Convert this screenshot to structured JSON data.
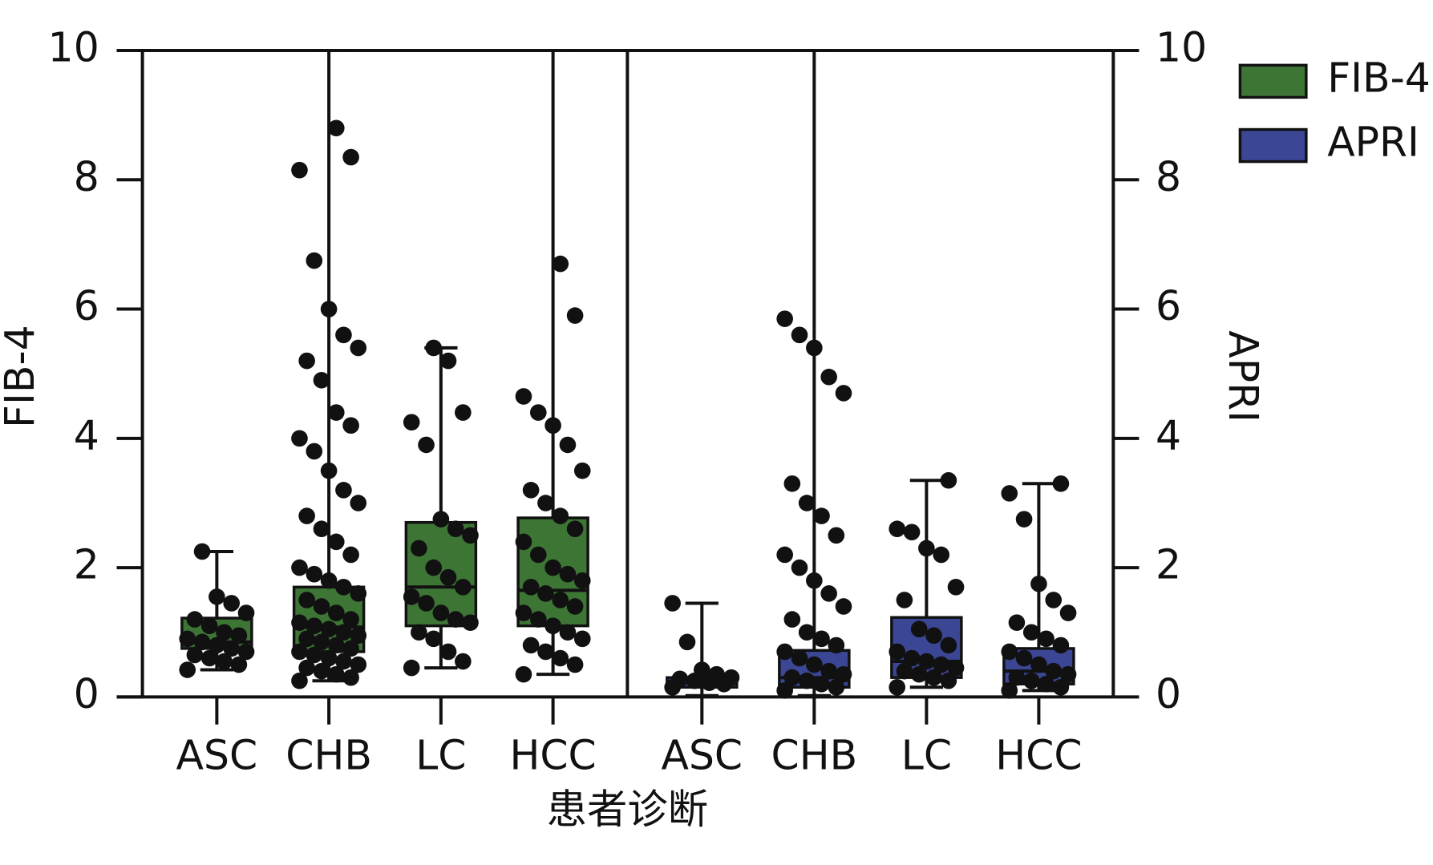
{
  "chart_data": {
    "type": "box",
    "xlabel": "患者诊断",
    "ylabel": "FIB-4",
    "y2label": "APRI",
    "categories": [
      "ASC",
      "CHB",
      "LC",
      "HCC"
    ],
    "ylim": [
      0,
      10
    ],
    "yticks": [
      0,
      2,
      4,
      6,
      8,
      10
    ],
    "y2lim": [
      0,
      10
    ],
    "y2ticks": [
      0,
      2,
      4,
      6,
      8,
      10
    ],
    "legend": "upper right",
    "series": [
      {
        "name": "FIB-4",
        "color": "#3d7535",
        "axis": "y",
        "boxes": [
          {
            "min": 0.42,
            "q1": 0.75,
            "median": 0.85,
            "q3": 1.22,
            "max": 2.25,
            "points": [
              0.42,
              0.5,
              0.55,
              0.6,
              0.65,
              0.7,
              0.75,
              0.8,
              0.85,
              0.9,
              0.95,
              1.0,
              1.1,
              1.2,
              1.3,
              1.45,
              1.55,
              2.25
            ]
          },
          {
            "min": 0.25,
            "q1": 0.7,
            "median": 1.08,
            "q3": 1.7,
            "max": 10,
            "points": [
              0.25,
              0.3,
              0.35,
              0.4,
              0.45,
              0.5,
              0.55,
              0.6,
              0.65,
              0.7,
              0.75,
              0.8,
              0.85,
              0.9,
              0.95,
              1.0,
              1.05,
              1.1,
              1.15,
              1.2,
              1.3,
              1.4,
              1.5,
              1.6,
              1.7,
              1.8,
              1.9,
              2.0,
              2.2,
              2.4,
              2.6,
              2.8,
              3.0,
              3.2,
              3.5,
              3.8,
              4.0,
              4.2,
              4.4,
              4.9,
              5.2,
              5.4,
              5.6,
              6.0,
              6.75,
              8.15,
              8.35,
              8.8
            ]
          },
          {
            "min": 0.45,
            "q1": 1.1,
            "median": 1.7,
            "q3": 2.7,
            "max": 5.4,
            "points": [
              0.45,
              0.55,
              0.7,
              0.9,
              1.0,
              1.15,
              1.2,
              1.3,
              1.45,
              1.55,
              1.7,
              1.85,
              2.0,
              2.3,
              2.5,
              2.6,
              2.75,
              3.9,
              4.25,
              4.4,
              5.2,
              5.4
            ]
          },
          {
            "min": 0.35,
            "q1": 1.1,
            "median": 1.65,
            "q3": 2.77,
            "max": 10,
            "points": [
              0.35,
              0.5,
              0.6,
              0.7,
              0.8,
              0.9,
              1.0,
              1.1,
              1.2,
              1.3,
              1.4,
              1.5,
              1.6,
              1.7,
              1.8,
              1.9,
              2.0,
              2.2,
              2.4,
              2.6,
              2.8,
              3.0,
              3.2,
              3.5,
              3.9,
              4.2,
              4.4,
              4.65,
              5.9,
              6.7
            ]
          }
        ]
      },
      {
        "name": "APRI",
        "color": "#3b4694",
        "axis": "y2",
        "boxes": [
          {
            "min": 0.02,
            "q1": 0.15,
            "median": 0.22,
            "q3": 0.3,
            "max": 1.45,
            "points": [
              0.15,
              0.2,
              0.22,
              0.25,
              0.28,
              0.3,
              0.35,
              0.42,
              0.85,
              1.45
            ]
          },
          {
            "min": 0.02,
            "q1": 0.15,
            "median": 0.3,
            "q3": 0.72,
            "max": 10,
            "points": [
              0.1,
              0.15,
              0.2,
              0.25,
              0.3,
              0.35,
              0.4,
              0.5,
              0.6,
              0.7,
              0.8,
              0.9,
              1.0,
              1.2,
              1.4,
              1.6,
              1.8,
              2.0,
              2.2,
              2.5,
              2.8,
              3.0,
              3.3,
              4.7,
              4.95,
              5.4,
              5.6,
              5.85
            ]
          },
          {
            "min": 0.15,
            "q1": 0.3,
            "median": 0.55,
            "q3": 1.23,
            "max": 3.35,
            "points": [
              0.15,
              0.25,
              0.3,
              0.35,
              0.4,
              0.45,
              0.5,
              0.55,
              0.6,
              0.7,
              0.8,
              0.95,
              1.05,
              1.5,
              1.7,
              2.2,
              2.3,
              2.55,
              2.6,
              3.35
            ]
          },
          {
            "min": 0.1,
            "q1": 0.2,
            "median": 0.4,
            "q3": 0.75,
            "max": 3.3,
            "points": [
              0.1,
              0.15,
              0.2,
              0.25,
              0.3,
              0.35,
              0.4,
              0.5,
              0.6,
              0.7,
              0.8,
              0.9,
              1.0,
              1.15,
              1.3,
              1.5,
              1.75,
              2.75,
              3.15,
              3.3
            ]
          }
        ]
      }
    ]
  }
}
